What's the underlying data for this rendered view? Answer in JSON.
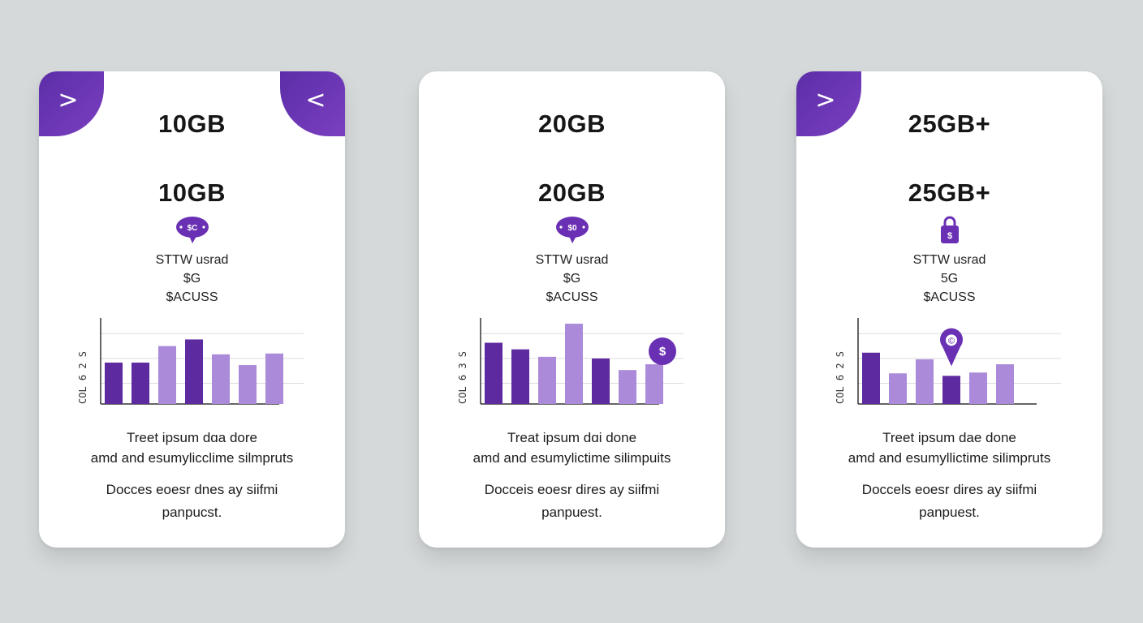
{
  "colors": {
    "dark_bar": "#5d2aa0",
    "light_bar": "#ab8ad9",
    "accent": "#6a30b4",
    "grid": "#dcdcdc",
    "axis": "#333333"
  },
  "cards": [
    {
      "title": "10GB",
      "subtitle": "10GB",
      "corner_left": ">",
      "corner_right": "<",
      "badge_icon": "speech-bubble-icon",
      "badge_text": "$C",
      "line1": "STTW usrad",
      "line2": "$G",
      "line3": "$ACUSS",
      "y_axis_label": "COL 6 2 S",
      "bars": [
        {
          "value": 50,
          "shade": "dark"
        },
        {
          "value": 50,
          "shade": "dark"
        },
        {
          "value": 70,
          "shade": "light"
        },
        {
          "value": 78,
          "shade": "dark"
        },
        {
          "value": 60,
          "shade": "light"
        },
        {
          "value": 47,
          "shade": "light"
        },
        {
          "value": 61,
          "shade": "light"
        }
      ],
      "marker": null,
      "desc1": "Treet ipsum dɑa dore",
      "desc2": "amd and esumylicclime silmpruts",
      "note1": "Docces eoesr dnes ay siifmi",
      "note2": "panpucst."
    },
    {
      "title": "20GB",
      "subtitle": "20GB",
      "corner_left": null,
      "corner_right": null,
      "badge_icon": "speech-bubble-icon",
      "badge_text": "$0",
      "line1": "STTW usrad",
      "line2": "$G",
      "line3": "$ACUSS",
      "y_axis_label": "COL 6 3 S",
      "bars": [
        {
          "value": 74,
          "shade": "dark"
        },
        {
          "value": 66,
          "shade": "dark"
        },
        {
          "value": 57,
          "shade": "light"
        },
        {
          "value": 97,
          "shade": "light"
        },
        {
          "value": 55,
          "shade": "dark"
        },
        {
          "value": 41,
          "shade": "light"
        },
        {
          "value": 48,
          "shade": "light"
        }
      ],
      "marker": {
        "type": "circle",
        "text": "$",
        "bar_index": 6
      },
      "desc1": "Treat ipsum dɑi done",
      "desc2": "amd and esumylictime silimpuits",
      "note1": "Docceis eoesr dires ay siifmi",
      "note2": "panpuest."
    },
    {
      "title": "25GB+",
      "subtitle": "25GB+",
      "corner_left": ">",
      "corner_right": null,
      "badge_icon": "lock-icon",
      "badge_text": "$",
      "line1": "STTW usrad",
      "line2": "5G",
      "line3": "$ACUSS",
      "y_axis_label": "COL 6 2 S",
      "bars": [
        {
          "value": 62,
          "shade": "dark"
        },
        {
          "value": 37,
          "shade": "light"
        },
        {
          "value": 54,
          "shade": "light"
        },
        {
          "value": 34,
          "shade": "dark"
        },
        {
          "value": 38,
          "shade": "light"
        },
        {
          "value": 48,
          "shade": "light"
        }
      ],
      "marker": {
        "type": "pin",
        "text": "©",
        "bar_index": 3
      },
      "desc1": "Treet ipsum dae done",
      "desc2": "amd and esumyllictime silimpruts",
      "note1": "Doccels eoesr dires ay siifmi",
      "note2": "panpuest."
    }
  ]
}
